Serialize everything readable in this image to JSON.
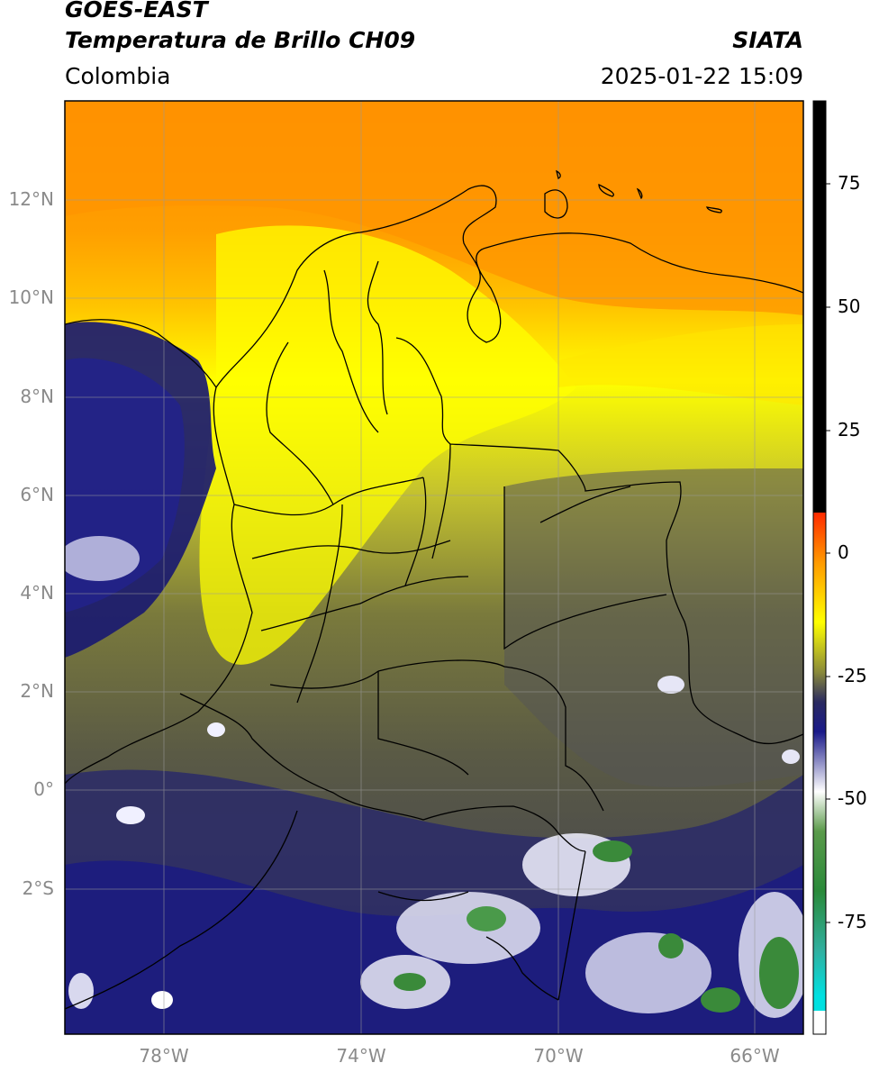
{
  "header": {
    "title_line1": "GOES-EAST",
    "title_line2": "Temperatura de Brillo CH09",
    "brand": "SIATA",
    "region": "Colombia",
    "timestamp": "2025-01-22 15:09"
  },
  "map": {
    "lat_labels": [
      "12°N",
      "10°N",
      "8°N",
      "6°N",
      "4°N",
      "2°N",
      "0°",
      "2°S"
    ],
    "lon_labels": [
      "78°W",
      "74°W",
      "70°W",
      "66°W"
    ],
    "palette": {
      "orange": "#ff8c00",
      "yellow": "#ffff00",
      "olive": "#6b6b3a",
      "gray": "#555566",
      "navy": "#1a1a7a",
      "white": "#ffffff",
      "green": "#3a8a3a",
      "border": "#000000",
      "grid": "#9a9a9a"
    }
  },
  "colorbar": {
    "labels": [
      "75",
      "50",
      "25",
      "0",
      "-25",
      "-50",
      "-75"
    ]
  }
}
